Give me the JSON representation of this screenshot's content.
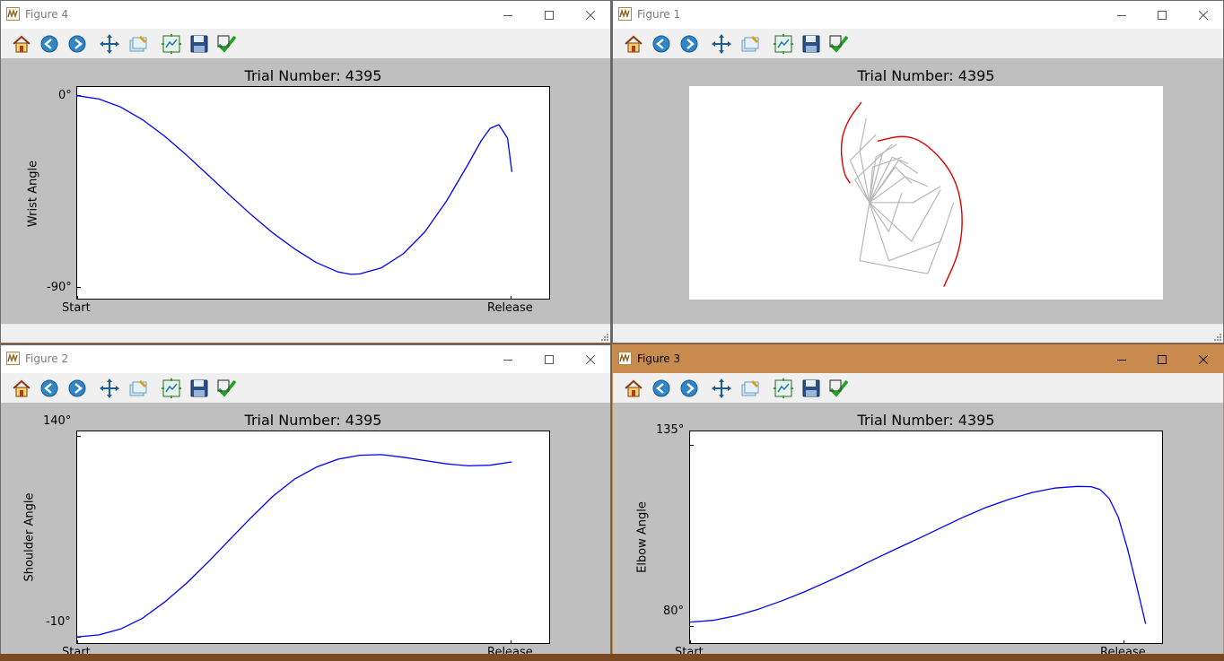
{
  "windows": {
    "fig4": {
      "title": "Figure 4"
    },
    "fig1": {
      "title": "Figure 1"
    },
    "fig2": {
      "title": "Figure 2"
    },
    "fig3": {
      "title": "Figure 3"
    }
  },
  "toolbar_icons": [
    "home-icon",
    "back-icon",
    "forward-icon",
    "pan-icon",
    "zoom-icon",
    "subplots-icon",
    "save-icon",
    "check-icon"
  ],
  "colors": {
    "line_blue": "#0000ff",
    "arm_red": "#e00000",
    "arm_gray": "#b8b8b8",
    "active_title": "#c98a4e",
    "figure_bg": "#bfbfbf"
  },
  "chart_data": [
    {
      "id": "wrist",
      "type": "line",
      "title": "Trial Number: 4395",
      "ylabel": "Wrist Angle",
      "xlabel": "",
      "x_ticks": [
        "Start",
        "Release"
      ],
      "y_ticks": [
        "0°",
        "-90°"
      ],
      "y_tick_values": [
        0,
        -90
      ],
      "ylim": [
        -94,
        4
      ],
      "xlim": [
        0,
        1.09
      ],
      "x": [
        0,
        0.05,
        0.1,
        0.15,
        0.2,
        0.25,
        0.3,
        0.35,
        0.4,
        0.45,
        0.5,
        0.55,
        0.6,
        0.63,
        0.65,
        0.7,
        0.75,
        0.8,
        0.85,
        0.9,
        0.93,
        0.95,
        0.97,
        0.99,
        1.0
      ],
      "values": [
        0,
        -1.5,
        -5.2,
        -11.0,
        -18.4,
        -27.0,
        -36.2,
        -45.5,
        -54.6,
        -63.0,
        -70.3,
        -76.6,
        -80.9,
        -82.0,
        -81.8,
        -79.0,
        -72.6,
        -62.5,
        -48.3,
        -31.2,
        -20.5,
        -15.0,
        -13.3,
        -19.5,
        -35.0
      ],
      "grid": false
    },
    {
      "id": "arm",
      "type": "other",
      "title": "Trial Number: 4395",
      "hand_path_red_1": [
        [
          -0.05,
          0.62
        ],
        [
          -0.14,
          0.5
        ],
        [
          -0.18,
          0.36
        ],
        [
          -0.16,
          0.18
        ],
        [
          -0.12,
          0.12
        ]
      ],
      "hand_path_red_2": [
        [
          0.05,
          0.38
        ],
        [
          0.22,
          0.42
        ],
        [
          0.36,
          0.36
        ],
        [
          0.52,
          0.18
        ],
        [
          0.58,
          -0.05
        ],
        [
          0.56,
          -0.3
        ],
        [
          0.46,
          -0.52
        ]
      ],
      "arm_segments_gray": [
        [
          [
            0,
            0
          ],
          [
            0.08,
            0.3
          ],
          [
            0.14,
            0.36
          ]
        ],
        [
          [
            0,
            0
          ],
          [
            0.18,
            0.26
          ],
          [
            0.3,
            0.18
          ]
        ],
        [
          [
            0,
            0
          ],
          [
            0.22,
            0.16
          ],
          [
            0.36,
            0.1
          ]
        ],
        [
          [
            0,
            0
          ],
          [
            0.27,
            0.0
          ],
          [
            0.44,
            0.1
          ]
        ],
        [
          [
            0,
            0
          ],
          [
            0.26,
            -0.24
          ],
          [
            0.44,
            0.08
          ]
        ],
        [
          [
            0,
            0
          ],
          [
            0.12,
            -0.36
          ],
          [
            0.44,
            -0.24
          ],
          [
            0.52,
            0.0
          ]
        ],
        [
          [
            0,
            0
          ],
          [
            -0.06,
            -0.36
          ],
          [
            0.36,
            -0.44
          ],
          [
            0.46,
            -0.18
          ]
        ],
        [
          [
            0,
            0
          ],
          [
            -0.06,
            0.32
          ],
          [
            -0.02,
            0.52
          ]
        ],
        [
          [
            0,
            0
          ],
          [
            -0.12,
            0.26
          ],
          [
            0.04,
            0.42
          ]
        ],
        [
          [
            0,
            0
          ],
          [
            0.04,
            0.28
          ],
          [
            0.17,
            0.36
          ]
        ],
        [
          [
            0,
            0
          ],
          [
            -0.09,
            0.14
          ],
          [
            0.08,
            0.3
          ]
        ],
        [
          [
            0,
            0
          ],
          [
            0.02,
            0.22
          ],
          [
            0.2,
            0.28
          ]
        ],
        [
          [
            0,
            0
          ],
          [
            0.14,
            0.28
          ],
          [
            0.24,
            0.24
          ]
        ],
        [
          [
            0,
            0
          ],
          [
            0.12,
            -0.18
          ],
          [
            0.2,
            0.06
          ]
        ],
        [
          [
            0,
            0
          ],
          [
            0.16,
            0.22
          ],
          [
            0.26,
            0.12
          ]
        ]
      ],
      "xlim": [
        -0.5,
        1.2
      ],
      "ylim": [
        -0.6,
        0.72
      ]
    },
    {
      "id": "shoulder",
      "type": "line",
      "title": "Trial Number: 4395",
      "ylabel": "Shoulder Angle",
      "xlabel": "",
      "x_ticks": [
        "Start",
        "Release"
      ],
      "y_ticks": [
        "140°",
        "-10°"
      ],
      "y_tick_values": [
        140,
        -10
      ],
      "ylim": [
        -16,
        145
      ],
      "xlim": [
        0,
        1.09
      ],
      "x": [
        0,
        0.05,
        0.1,
        0.15,
        0.2,
        0.25,
        0.3,
        0.35,
        0.4,
        0.45,
        0.5,
        0.55,
        0.6,
        0.65,
        0.7,
        0.75,
        0.8,
        0.85,
        0.9,
        0.95,
        1.0
      ],
      "values": [
        -10,
        -8.5,
        -4,
        4,
        16,
        30,
        46,
        63,
        80,
        96,
        109,
        118,
        124,
        127,
        127.5,
        125.5,
        123,
        120.5,
        119,
        119.5,
        122
      ],
      "grid": false
    },
    {
      "id": "elbow",
      "type": "line",
      "title": "Trial Number: 4395",
      "ylabel": "Elbow Angle",
      "xlabel": "",
      "x_ticks": [
        "Start",
        "Release"
      ],
      "y_ticks": [
        "135°",
        "80°"
      ],
      "y_tick_values": [
        135,
        80
      ],
      "ylim": [
        78,
        139
      ],
      "xlim": [
        0,
        1.04
      ],
      "x": [
        0,
        0.05,
        0.1,
        0.15,
        0.2,
        0.25,
        0.3,
        0.35,
        0.4,
        0.45,
        0.5,
        0.55,
        0.6,
        0.65,
        0.7,
        0.75,
        0.8,
        0.85,
        0.88,
        0.9,
        0.92,
        0.94,
        0.96,
        0.98,
        1.0
      ],
      "values": [
        84.5,
        85,
        86.3,
        88.2,
        90.5,
        93.1,
        96,
        99,
        102.2,
        105.3,
        108.3,
        111.4,
        114.5,
        117.3,
        119.6,
        121.5,
        122.8,
        123.3,
        123.2,
        122.4,
        119.8,
        114.5,
        105.5,
        95,
        84
      ],
      "grid": false
    }
  ]
}
